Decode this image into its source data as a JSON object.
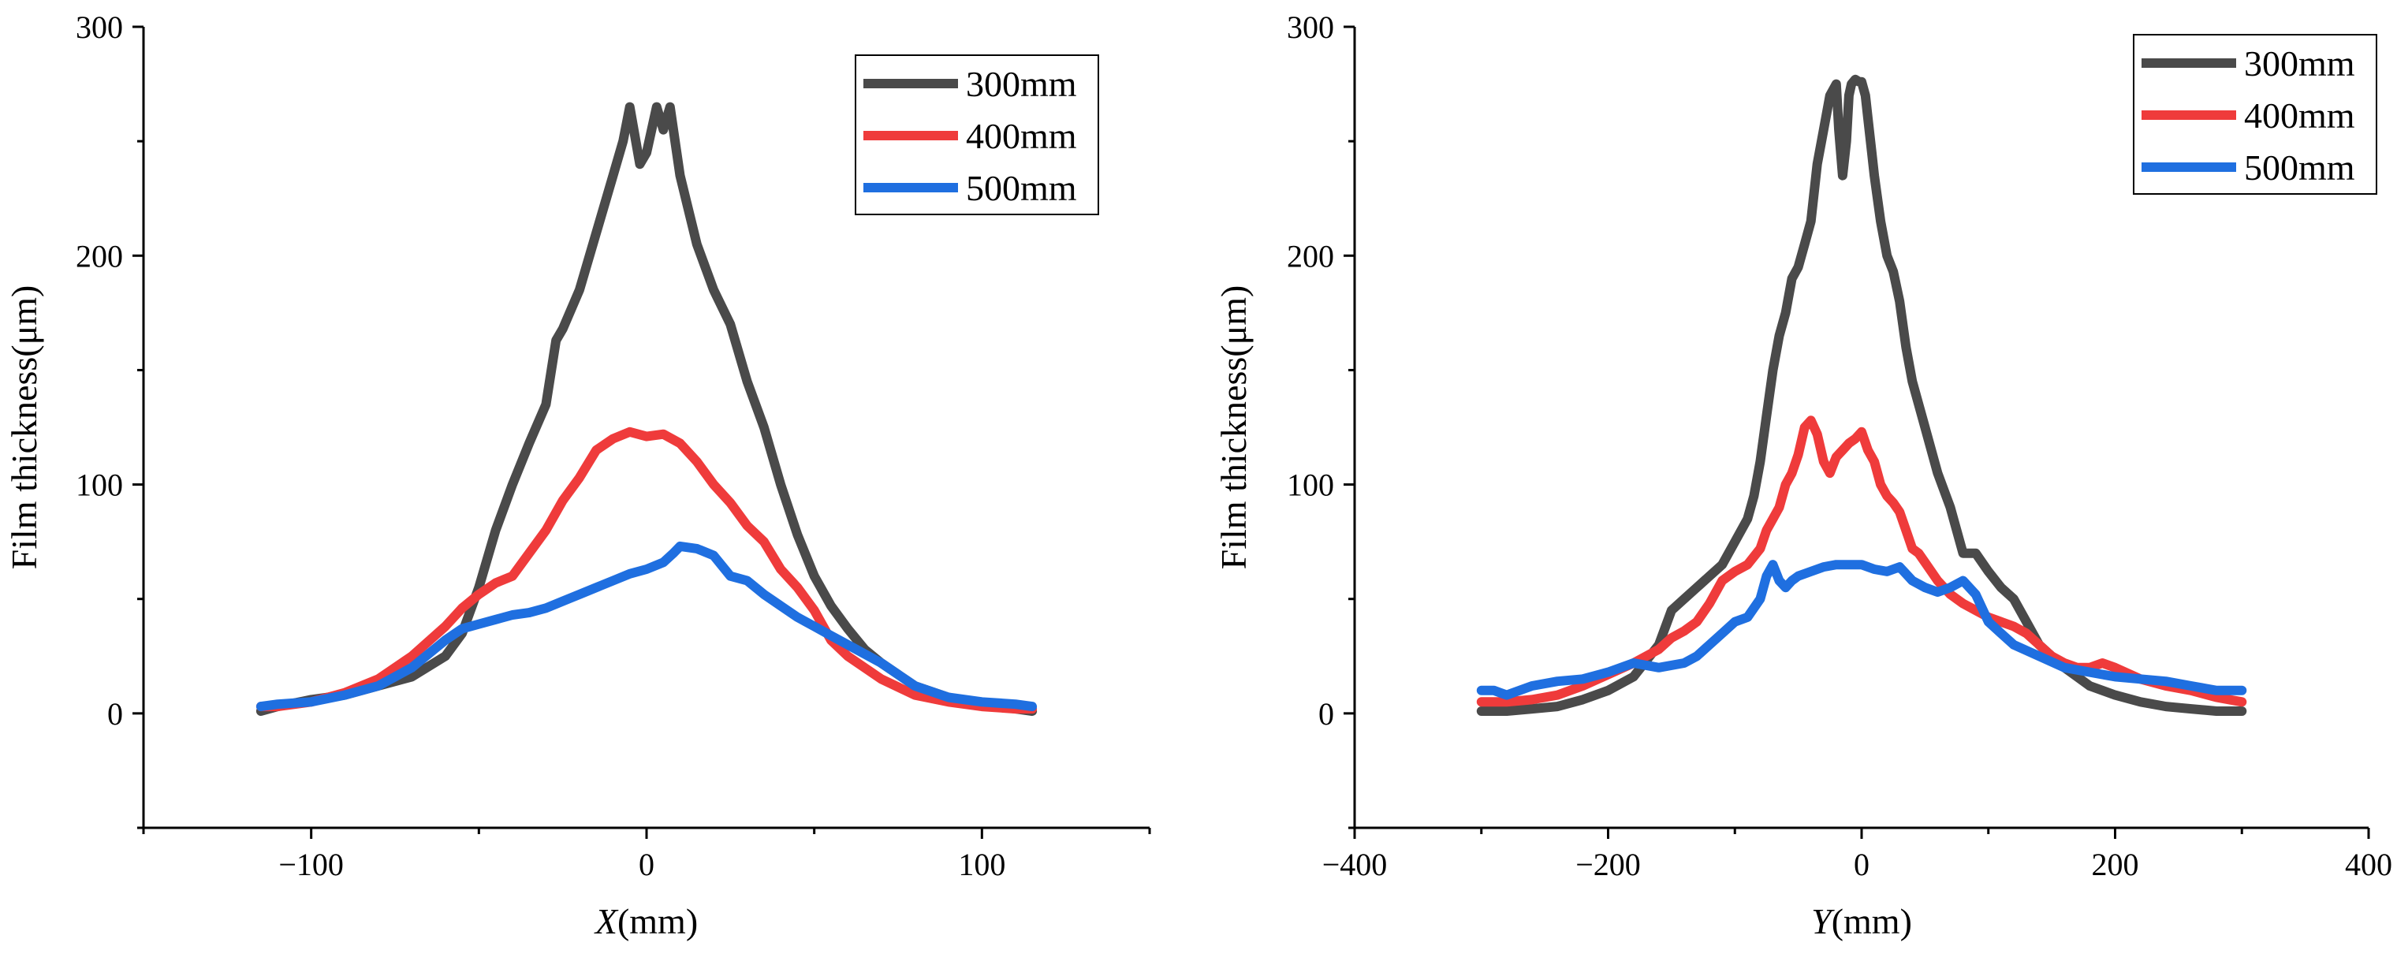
{
  "colors": {
    "s300": "#4a4a4a",
    "s400": "#ef3b3b",
    "s500": "#1f6fe0"
  },
  "chart_data": [
    {
      "type": "line",
      "xlabel_italic": "X",
      "xlabel_unit": "(mm)",
      "ylabel": "Film thickness(μm)",
      "xlim": [
        -150,
        150
      ],
      "ylim": [
        -50,
        300
      ],
      "xticks": [
        -100,
        0,
        100
      ],
      "yticks": [
        0,
        100,
        200,
        300
      ],
      "legend_position": "top-right",
      "series": [
        {
          "name": "300mm",
          "color": "#4a4a4a",
          "x": [
            -115,
            -110,
            -100,
            -90,
            -80,
            -70,
            -60,
            -55,
            -50,
            -45,
            -40,
            -35,
            -30,
            -27,
            -25,
            -20,
            -15,
            -10,
            -7,
            -5,
            -2,
            0,
            3,
            5,
            7,
            10,
            15,
            20,
            25,
            30,
            35,
            40,
            45,
            50,
            55,
            60,
            65,
            70,
            80,
            90,
            100,
            110,
            115
          ],
          "y": [
            1,
            3,
            6,
            8,
            12,
            16,
            25,
            35,
            55,
            80,
            100,
            118,
            135,
            163,
            168,
            185,
            210,
            235,
            250,
            265,
            240,
            245,
            265,
            255,
            265,
            235,
            205,
            185,
            170,
            145,
            125,
            100,
            78,
            60,
            47,
            37,
            28,
            22,
            12,
            7,
            4,
            2,
            1
          ]
        },
        {
          "name": "400mm",
          "color": "#ef3b3b",
          "x": [
            -115,
            -110,
            -100,
            -90,
            -80,
            -70,
            -60,
            -55,
            -50,
            -45,
            -40,
            -35,
            -30,
            -25,
            -20,
            -15,
            -10,
            -5,
            0,
            5,
            10,
            15,
            20,
            25,
            30,
            35,
            40,
            45,
            50,
            55,
            60,
            70,
            80,
            90,
            100,
            110,
            115
          ],
          "y": [
            3,
            3,
            5,
            9,
            15,
            25,
            38,
            46,
            52,
            57,
            60,
            70,
            80,
            93,
            103,
            115,
            120,
            123,
            121,
            122,
            118,
            110,
            100,
            92,
            82,
            75,
            63,
            55,
            45,
            32,
            25,
            15,
            8,
            5,
            3,
            2,
            2
          ]
        },
        {
          "name": "500mm",
          "color": "#1f6fe0",
          "x": [
            -115,
            -110,
            -100,
            -90,
            -80,
            -70,
            -60,
            -55,
            -50,
            -45,
            -40,
            -35,
            -30,
            -25,
            -20,
            -15,
            -10,
            -5,
            0,
            5,
            8,
            10,
            15,
            20,
            25,
            30,
            35,
            40,
            45,
            50,
            55,
            60,
            70,
            80,
            90,
            100,
            110,
            115
          ],
          "y": [
            3,
            4,
            5,
            8,
            12,
            20,
            32,
            37,
            39,
            41,
            43,
            44,
            46,
            49,
            52,
            55,
            58,
            61,
            63,
            66,
            70,
            73,
            72,
            69,
            60,
            58,
            52,
            47,
            42,
            38,
            34,
            30,
            22,
            12,
            7,
            5,
            4,
            3
          ]
        }
      ]
    },
    {
      "type": "line",
      "xlabel_italic": "Y",
      "xlabel_unit": "(mm)",
      "ylabel": "Film thickness(μm)",
      "xlim": [
        -400,
        400
      ],
      "ylim": [
        -50,
        300
      ],
      "xticks": [
        -400,
        -200,
        0,
        200,
        400
      ],
      "yticks": [
        0,
        100,
        200,
        300
      ],
      "legend_position": "top-right",
      "series": [
        {
          "name": "300mm",
          "color": "#4a4a4a",
          "x": [
            -300,
            -280,
            -260,
            -240,
            -220,
            -200,
            -180,
            -160,
            -150,
            -140,
            -130,
            -120,
            -110,
            -100,
            -95,
            -90,
            -85,
            -80,
            -75,
            -70,
            -65,
            -60,
            -55,
            -50,
            -45,
            -40,
            -35,
            -30,
            -25,
            -20,
            -18,
            -15,
            -12,
            -10,
            -8,
            -5,
            -2,
            0,
            3,
            5,
            8,
            10,
            15,
            20,
            25,
            30,
            35,
            40,
            50,
            60,
            70,
            80,
            90,
            100,
            110,
            120,
            130,
            140,
            150,
            160,
            170,
            180,
            200,
            220,
            240,
            260,
            280,
            300
          ],
          "y": [
            1,
            1,
            2,
            3,
            6,
            10,
            16,
            30,
            45,
            50,
            55,
            60,
            65,
            75,
            80,
            85,
            95,
            110,
            130,
            150,
            165,
            175,
            190,
            195,
            205,
            215,
            240,
            255,
            270,
            275,
            255,
            235,
            250,
            270,
            275,
            277,
            276,
            276,
            270,
            260,
            245,
            235,
            215,
            200,
            193,
            180,
            160,
            145,
            125,
            105,
            90,
            70,
            70,
            62,
            55,
            50,
            40,
            30,
            25,
            20,
            16,
            12,
            8,
            5,
            3,
            2,
            1,
            1
          ]
        },
        {
          "name": "400mm",
          "color": "#ef3b3b",
          "x": [
            -300,
            -280,
            -260,
            -240,
            -220,
            -200,
            -180,
            -160,
            -150,
            -140,
            -130,
            -120,
            -110,
            -100,
            -90,
            -80,
            -75,
            -70,
            -65,
            -60,
            -55,
            -50,
            -45,
            -40,
            -35,
            -30,
            -25,
            -20,
            -15,
            -10,
            -5,
            0,
            5,
            10,
            15,
            20,
            25,
            30,
            35,
            40,
            45,
            50,
            55,
            60,
            65,
            70,
            75,
            80,
            90,
            100,
            110,
            120,
            130,
            140,
            150,
            160,
            170,
            180,
            190,
            200,
            220,
            240,
            260,
            280,
            300
          ],
          "y": [
            5,
            5,
            6,
            8,
            12,
            17,
            22,
            28,
            33,
            36,
            40,
            48,
            58,
            62,
            65,
            72,
            80,
            85,
            90,
            100,
            105,
            113,
            125,
            128,
            122,
            110,
            105,
            112,
            115,
            118,
            120,
            123,
            115,
            110,
            100,
            95,
            92,
            88,
            80,
            72,
            70,
            66,
            62,
            58,
            55,
            52,
            50,
            48,
            45,
            42,
            40,
            38,
            35,
            30,
            25,
            22,
            20,
            20,
            22,
            20,
            15,
            12,
            10,
            7,
            5
          ]
        },
        {
          "name": "500mm",
          "color": "#1f6fe0",
          "x": [
            -300,
            -290,
            -280,
            -260,
            -240,
            -220,
            -200,
            -180,
            -160,
            -140,
            -130,
            -120,
            -110,
            -100,
            -90,
            -80,
            -75,
            -70,
            -65,
            -60,
            -55,
            -50,
            -40,
            -30,
            -20,
            -10,
            0,
            10,
            20,
            30,
            40,
            50,
            60,
            70,
            80,
            90,
            100,
            110,
            120,
            140,
            160,
            180,
            200,
            220,
            240,
            260,
            280,
            300
          ],
          "y": [
            10,
            10,
            8,
            12,
            14,
            15,
            18,
            22,
            20,
            22,
            25,
            30,
            35,
            40,
            42,
            50,
            60,
            65,
            58,
            55,
            58,
            60,
            62,
            64,
            65,
            65,
            65,
            63,
            62,
            64,
            58,
            55,
            53,
            55,
            58,
            52,
            40,
            35,
            30,
            25,
            20,
            18,
            16,
            15,
            14,
            12,
            10,
            10
          ]
        }
      ]
    }
  ]
}
